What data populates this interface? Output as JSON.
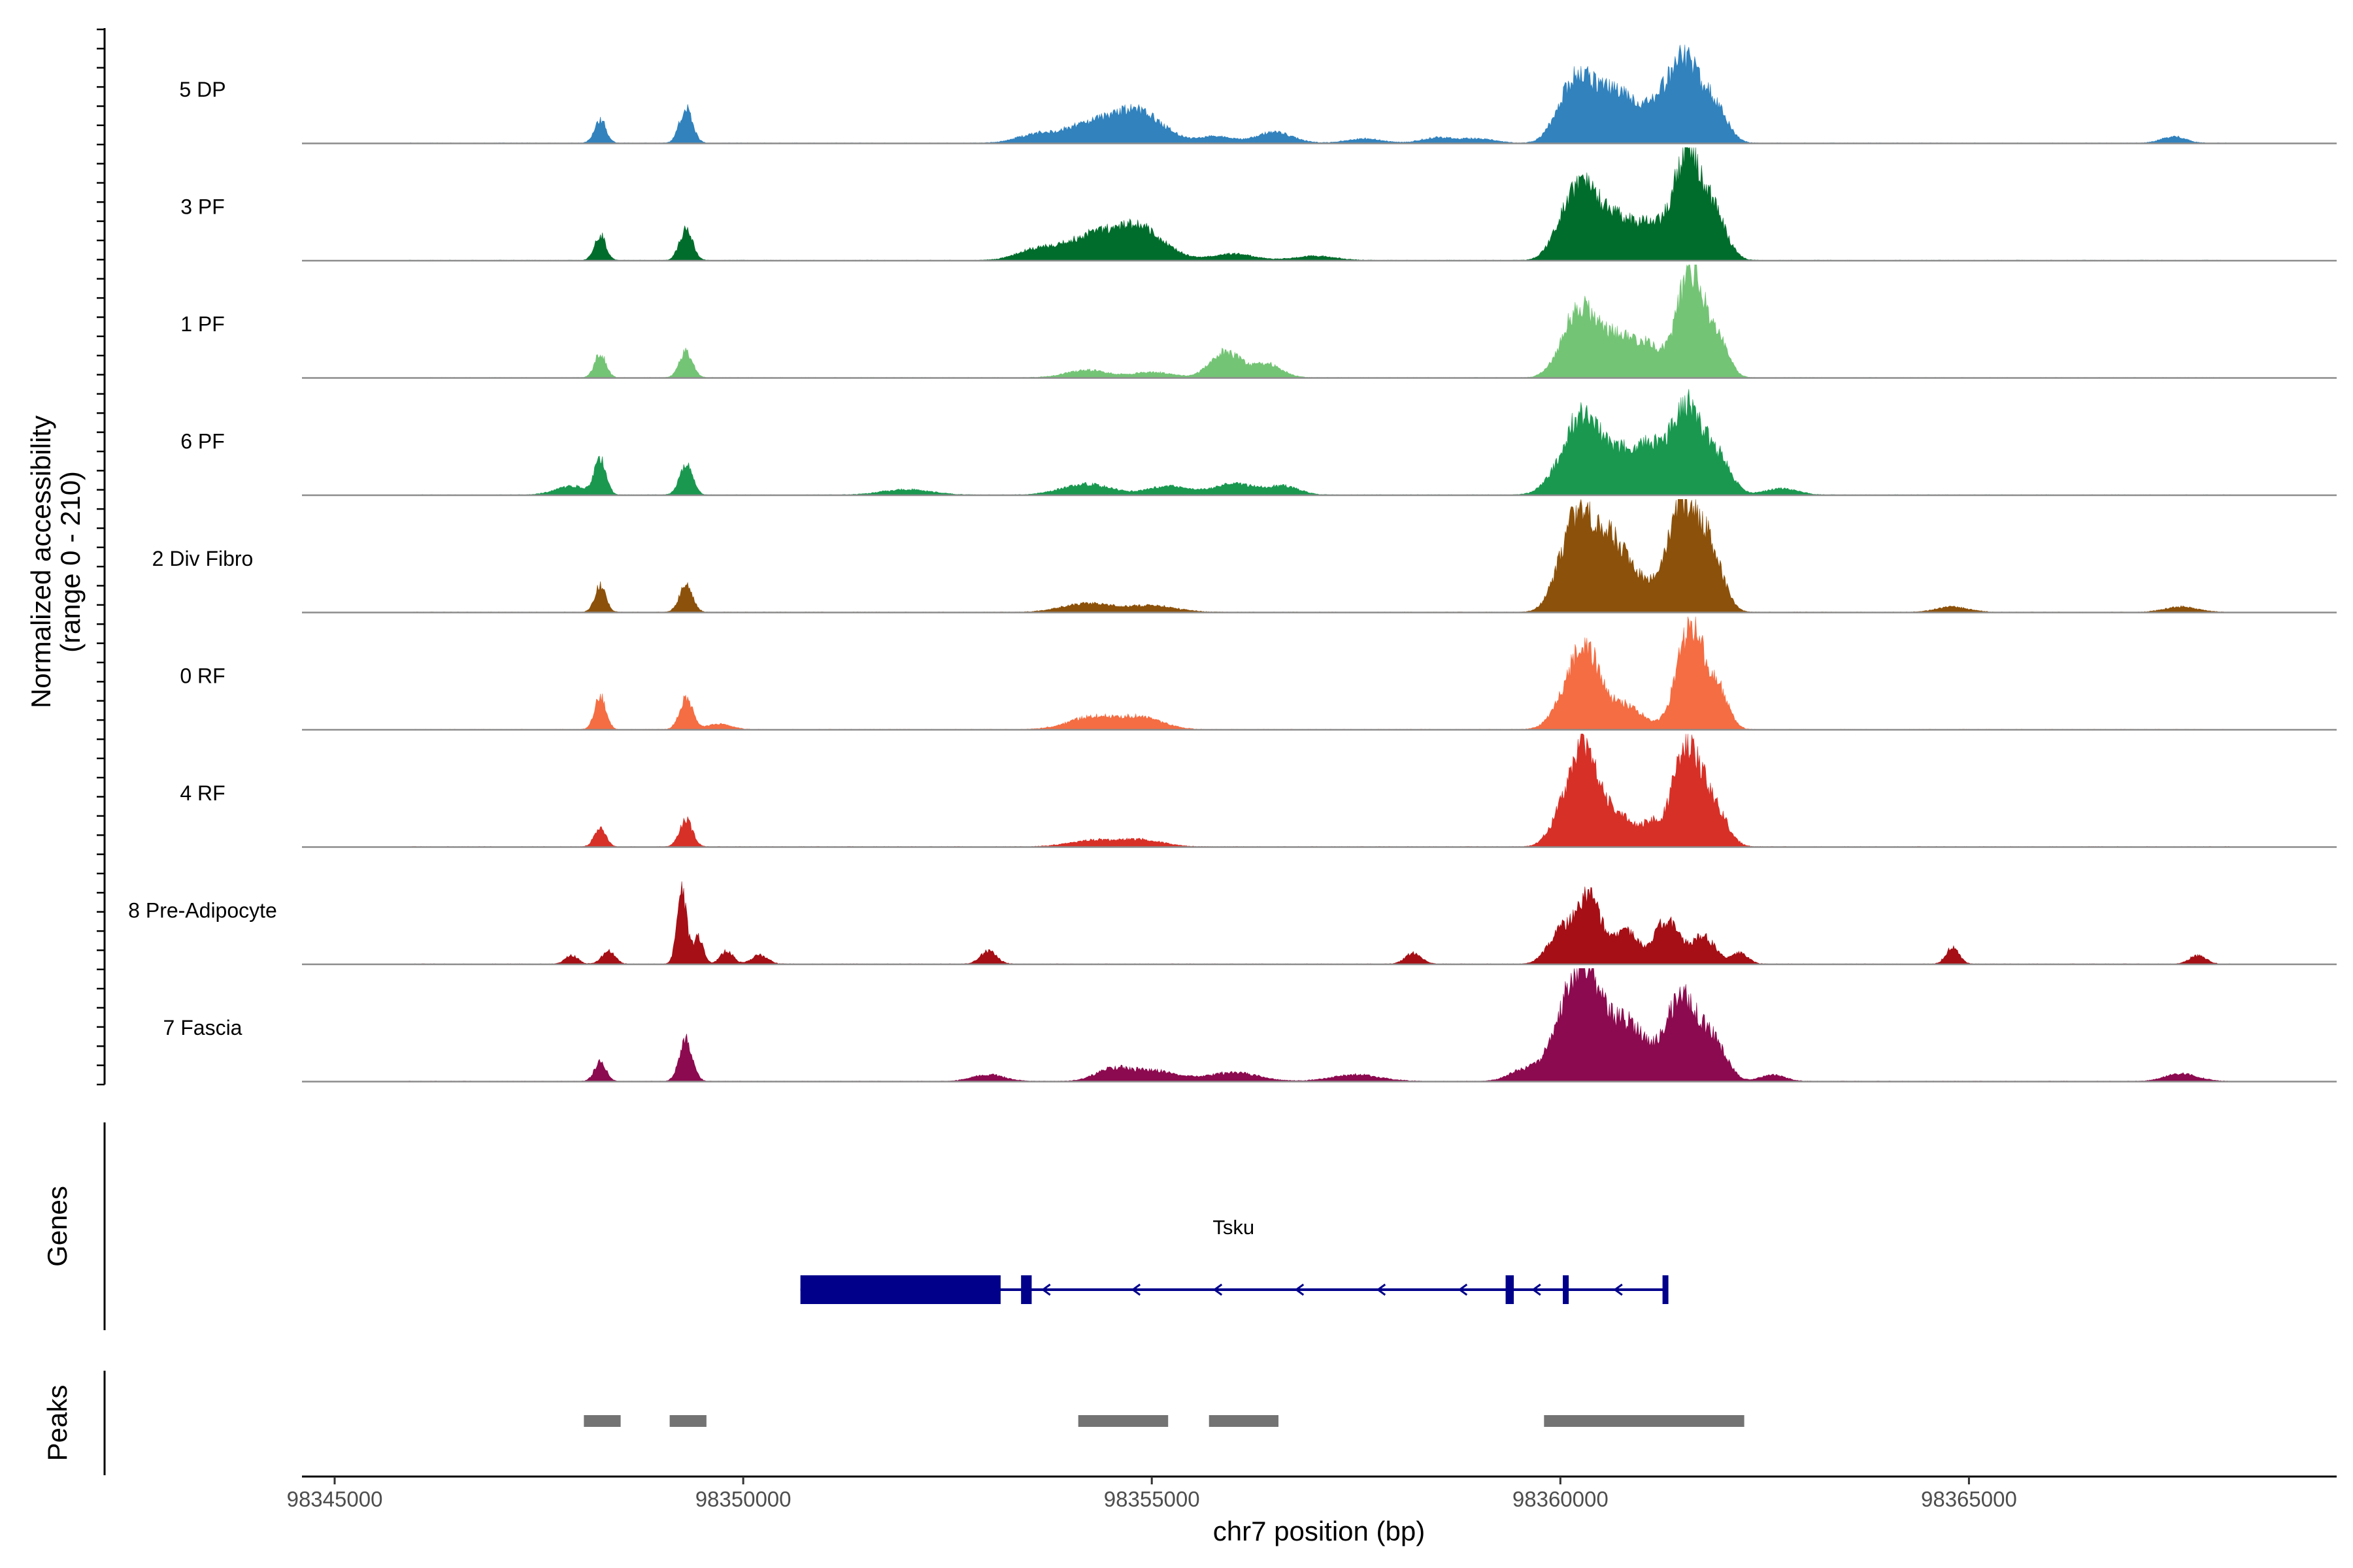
{
  "chart_data": {
    "type": "area",
    "subtype": "genome-coverage-tracks",
    "chromosome": "chr7",
    "xlabel": "chr7 position (bp)",
    "ylabel": [
      "Normalized accessibility",
      "(range 0 - 210)"
    ],
    "y_range": [
      0,
      210
    ],
    "xlim": [
      98344600,
      98369500
    ],
    "x_ticks": [
      {
        "value": 98345000,
        "label": "98345000"
      },
      {
        "value": 98350000,
        "label": "98350000"
      },
      {
        "value": 98355000,
        "label": "98355000"
      },
      {
        "value": 98360000,
        "label": "98360000"
      },
      {
        "value": 98365000,
        "label": "98365000"
      }
    ],
    "tracks": [
      {
        "name": "5 DP",
        "color": "#3182bd",
        "peaks": [
          [
            98348250,
            0.22,
            70
          ],
          [
            98349300,
            0.32,
            80
          ],
          [
            98353600,
            0.08,
            250
          ],
          [
            98354200,
            0.14,
            280
          ],
          [
            98354800,
            0.3,
            320
          ],
          [
            98355800,
            0.06,
            200
          ],
          [
            98356500,
            0.1,
            220
          ],
          [
            98357600,
            0.04,
            220
          ],
          [
            98358500,
            0.05,
            200
          ],
          [
            98359000,
            0.04,
            200
          ],
          [
            98360000,
            0.12,
            150
          ],
          [
            98360250,
            0.58,
            200
          ],
          [
            98360700,
            0.45,
            200
          ],
          [
            98361100,
            0.25,
            150
          ],
          [
            98361500,
            0.8,
            200
          ],
          [
            98361900,
            0.3,
            150
          ],
          [
            98367500,
            0.06,
            150
          ]
        ]
      },
      {
        "name": "3 PF",
        "color": "#006d2c",
        "peaks": [
          [
            98348250,
            0.23,
            70
          ],
          [
            98349300,
            0.28,
            80
          ],
          [
            98353600,
            0.1,
            250
          ],
          [
            98354200,
            0.18,
            280
          ],
          [
            98354800,
            0.32,
            320
          ],
          [
            98356000,
            0.06,
            250
          ],
          [
            98357000,
            0.04,
            250
          ],
          [
            98360000,
            0.12,
            150
          ],
          [
            98360250,
            0.6,
            200
          ],
          [
            98360700,
            0.38,
            250
          ],
          [
            98361100,
            0.22,
            150
          ],
          [
            98361550,
            1.0,
            180
          ],
          [
            98361900,
            0.35,
            150
          ]
        ]
      },
      {
        "name": "1 PF",
        "color": "#74c476",
        "peaks": [
          [
            98348250,
            0.22,
            70
          ],
          [
            98349300,
            0.24,
            80
          ],
          [
            98354200,
            0.07,
            250
          ],
          [
            98355000,
            0.05,
            250
          ],
          [
            98355900,
            0.24,
            180
          ],
          [
            98356400,
            0.13,
            180
          ],
          [
            98360000,
            0.1,
            150
          ],
          [
            98360250,
            0.6,
            180
          ],
          [
            98360700,
            0.38,
            220
          ],
          [
            98361100,
            0.24,
            150
          ],
          [
            98361600,
            1.0,
            170
          ],
          [
            98361950,
            0.3,
            120
          ]
        ]
      },
      {
        "name": "6 PF",
        "color": "#1a9850",
        "peaks": [
          [
            98348250,
            0.33,
            70
          ],
          [
            98347900,
            0.08,
            200
          ],
          [
            98349300,
            0.28,
            80
          ],
          [
            98352000,
            0.05,
            300
          ],
          [
            98354200,
            0.1,
            300
          ],
          [
            98355200,
            0.08,
            250
          ],
          [
            98356000,
            0.1,
            250
          ],
          [
            98356600,
            0.08,
            200
          ],
          [
            98360050,
            0.2,
            200
          ],
          [
            98360300,
            0.62,
            200
          ],
          [
            98360800,
            0.38,
            250
          ],
          [
            98361100,
            0.25,
            150
          ],
          [
            98361550,
            0.85,
            200
          ],
          [
            98361950,
            0.28,
            150
          ],
          [
            98362700,
            0.06,
            200
          ]
        ]
      },
      {
        "name": "2 Div Fibro",
        "color": "#8c510a",
        "peaks": [
          [
            98348250,
            0.24,
            70
          ],
          [
            98349300,
            0.25,
            80
          ],
          [
            98354200,
            0.08,
            300
          ],
          [
            98355000,
            0.06,
            300
          ],
          [
            98360000,
            0.2,
            150
          ],
          [
            98360250,
            0.85,
            180
          ],
          [
            98360650,
            0.62,
            180
          ],
          [
            98361000,
            0.2,
            150
          ],
          [
            98361500,
            1.0,
            200
          ],
          [
            98361850,
            0.45,
            150
          ],
          [
            98364800,
            0.05,
            200
          ],
          [
            98367600,
            0.05,
            200
          ]
        ]
      },
      {
        "name": "0 RF",
        "color": "#f46d43",
        "peaks": [
          [
            98348250,
            0.3,
            70
          ],
          [
            98349300,
            0.28,
            80
          ],
          [
            98349700,
            0.05,
            150
          ],
          [
            98354300,
            0.12,
            300
          ],
          [
            98354900,
            0.1,
            250
          ],
          [
            98360000,
            0.15,
            150
          ],
          [
            98360300,
            0.76,
            180
          ],
          [
            98360800,
            0.22,
            200
          ],
          [
            98361600,
            0.95,
            170
          ],
          [
            98361950,
            0.3,
            120
          ]
        ]
      },
      {
        "name": "4 RF",
        "color": "#d73027",
        "peaks": [
          [
            98348250,
            0.18,
            70
          ],
          [
            98349300,
            0.25,
            80
          ],
          [
            98354300,
            0.06,
            300
          ],
          [
            98354900,
            0.06,
            250
          ],
          [
            98360000,
            0.2,
            150
          ],
          [
            98360300,
            0.88,
            180
          ],
          [
            98360750,
            0.25,
            200
          ],
          [
            98361100,
            0.15,
            100
          ],
          [
            98361550,
            0.95,
            180
          ],
          [
            98361900,
            0.3,
            150
          ]
        ]
      },
      {
        "name": "8 Pre-Adipocyte",
        "color": "#a50f15",
        "peaks": [
          [
            98347900,
            0.08,
            80
          ],
          [
            98348350,
            0.12,
            80
          ],
          [
            98349250,
            0.65,
            60
          ],
          [
            98349450,
            0.25,
            60
          ],
          [
            98349800,
            0.12,
            80
          ],
          [
            98350200,
            0.08,
            100
          ],
          [
            98353000,
            0.12,
            100
          ],
          [
            98358200,
            0.1,
            100
          ],
          [
            98360000,
            0.3,
            150
          ],
          [
            98360350,
            0.6,
            150
          ],
          [
            98360800,
            0.3,
            150
          ],
          [
            98361300,
            0.4,
            150
          ],
          [
            98361750,
            0.25,
            150
          ],
          [
            98362200,
            0.1,
            100
          ],
          [
            98364800,
            0.15,
            80
          ],
          [
            98367800,
            0.08,
            100
          ]
        ]
      },
      {
        "name": "7 Fascia",
        "color": "#8c0a4f",
        "peaks": [
          [
            98348250,
            0.18,
            70
          ],
          [
            98349300,
            0.38,
            80
          ],
          [
            98353000,
            0.06,
            200
          ],
          [
            98354500,
            0.1,
            200
          ],
          [
            98355000,
            0.1,
            300
          ],
          [
            98356000,
            0.08,
            300
          ],
          [
            98357500,
            0.06,
            300
          ],
          [
            98359600,
            0.12,
            200
          ],
          [
            98360000,
            0.4,
            150
          ],
          [
            98360300,
            1.0,
            180
          ],
          [
            98360800,
            0.55,
            250
          ],
          [
            98361500,
            0.78,
            200
          ],
          [
            98361900,
            0.3,
            150
          ],
          [
            98362600,
            0.06,
            150
          ],
          [
            98367600,
            0.07,
            200
          ]
        ]
      }
    ],
    "genes": {
      "title": "Genes",
      "label": "Tsku",
      "color": "#00008b",
      "strand": "-",
      "start": 98350700,
      "end": 98361300,
      "exons": [
        [
          98350700,
          98353150
        ],
        [
          98353400,
          98353530
        ],
        [
          98359330,
          98359430
        ],
        [
          98360030,
          98360070
        ],
        [
          98361250,
          98361320
        ]
      ],
      "arrows": [
        98353700,
        98354800,
        98355800,
        98356800,
        98357800,
        98358800,
        98359700,
        98360700
      ]
    },
    "peaks_track": {
      "title": "Peaks",
      "color": "#737373",
      "regions": [
        [
          98348050,
          98348500
        ],
        [
          98349100,
          98349550
        ],
        [
          98354100,
          98355200
        ],
        [
          98355700,
          98356550
        ],
        [
          98359800,
          98362250
        ]
      ]
    }
  }
}
